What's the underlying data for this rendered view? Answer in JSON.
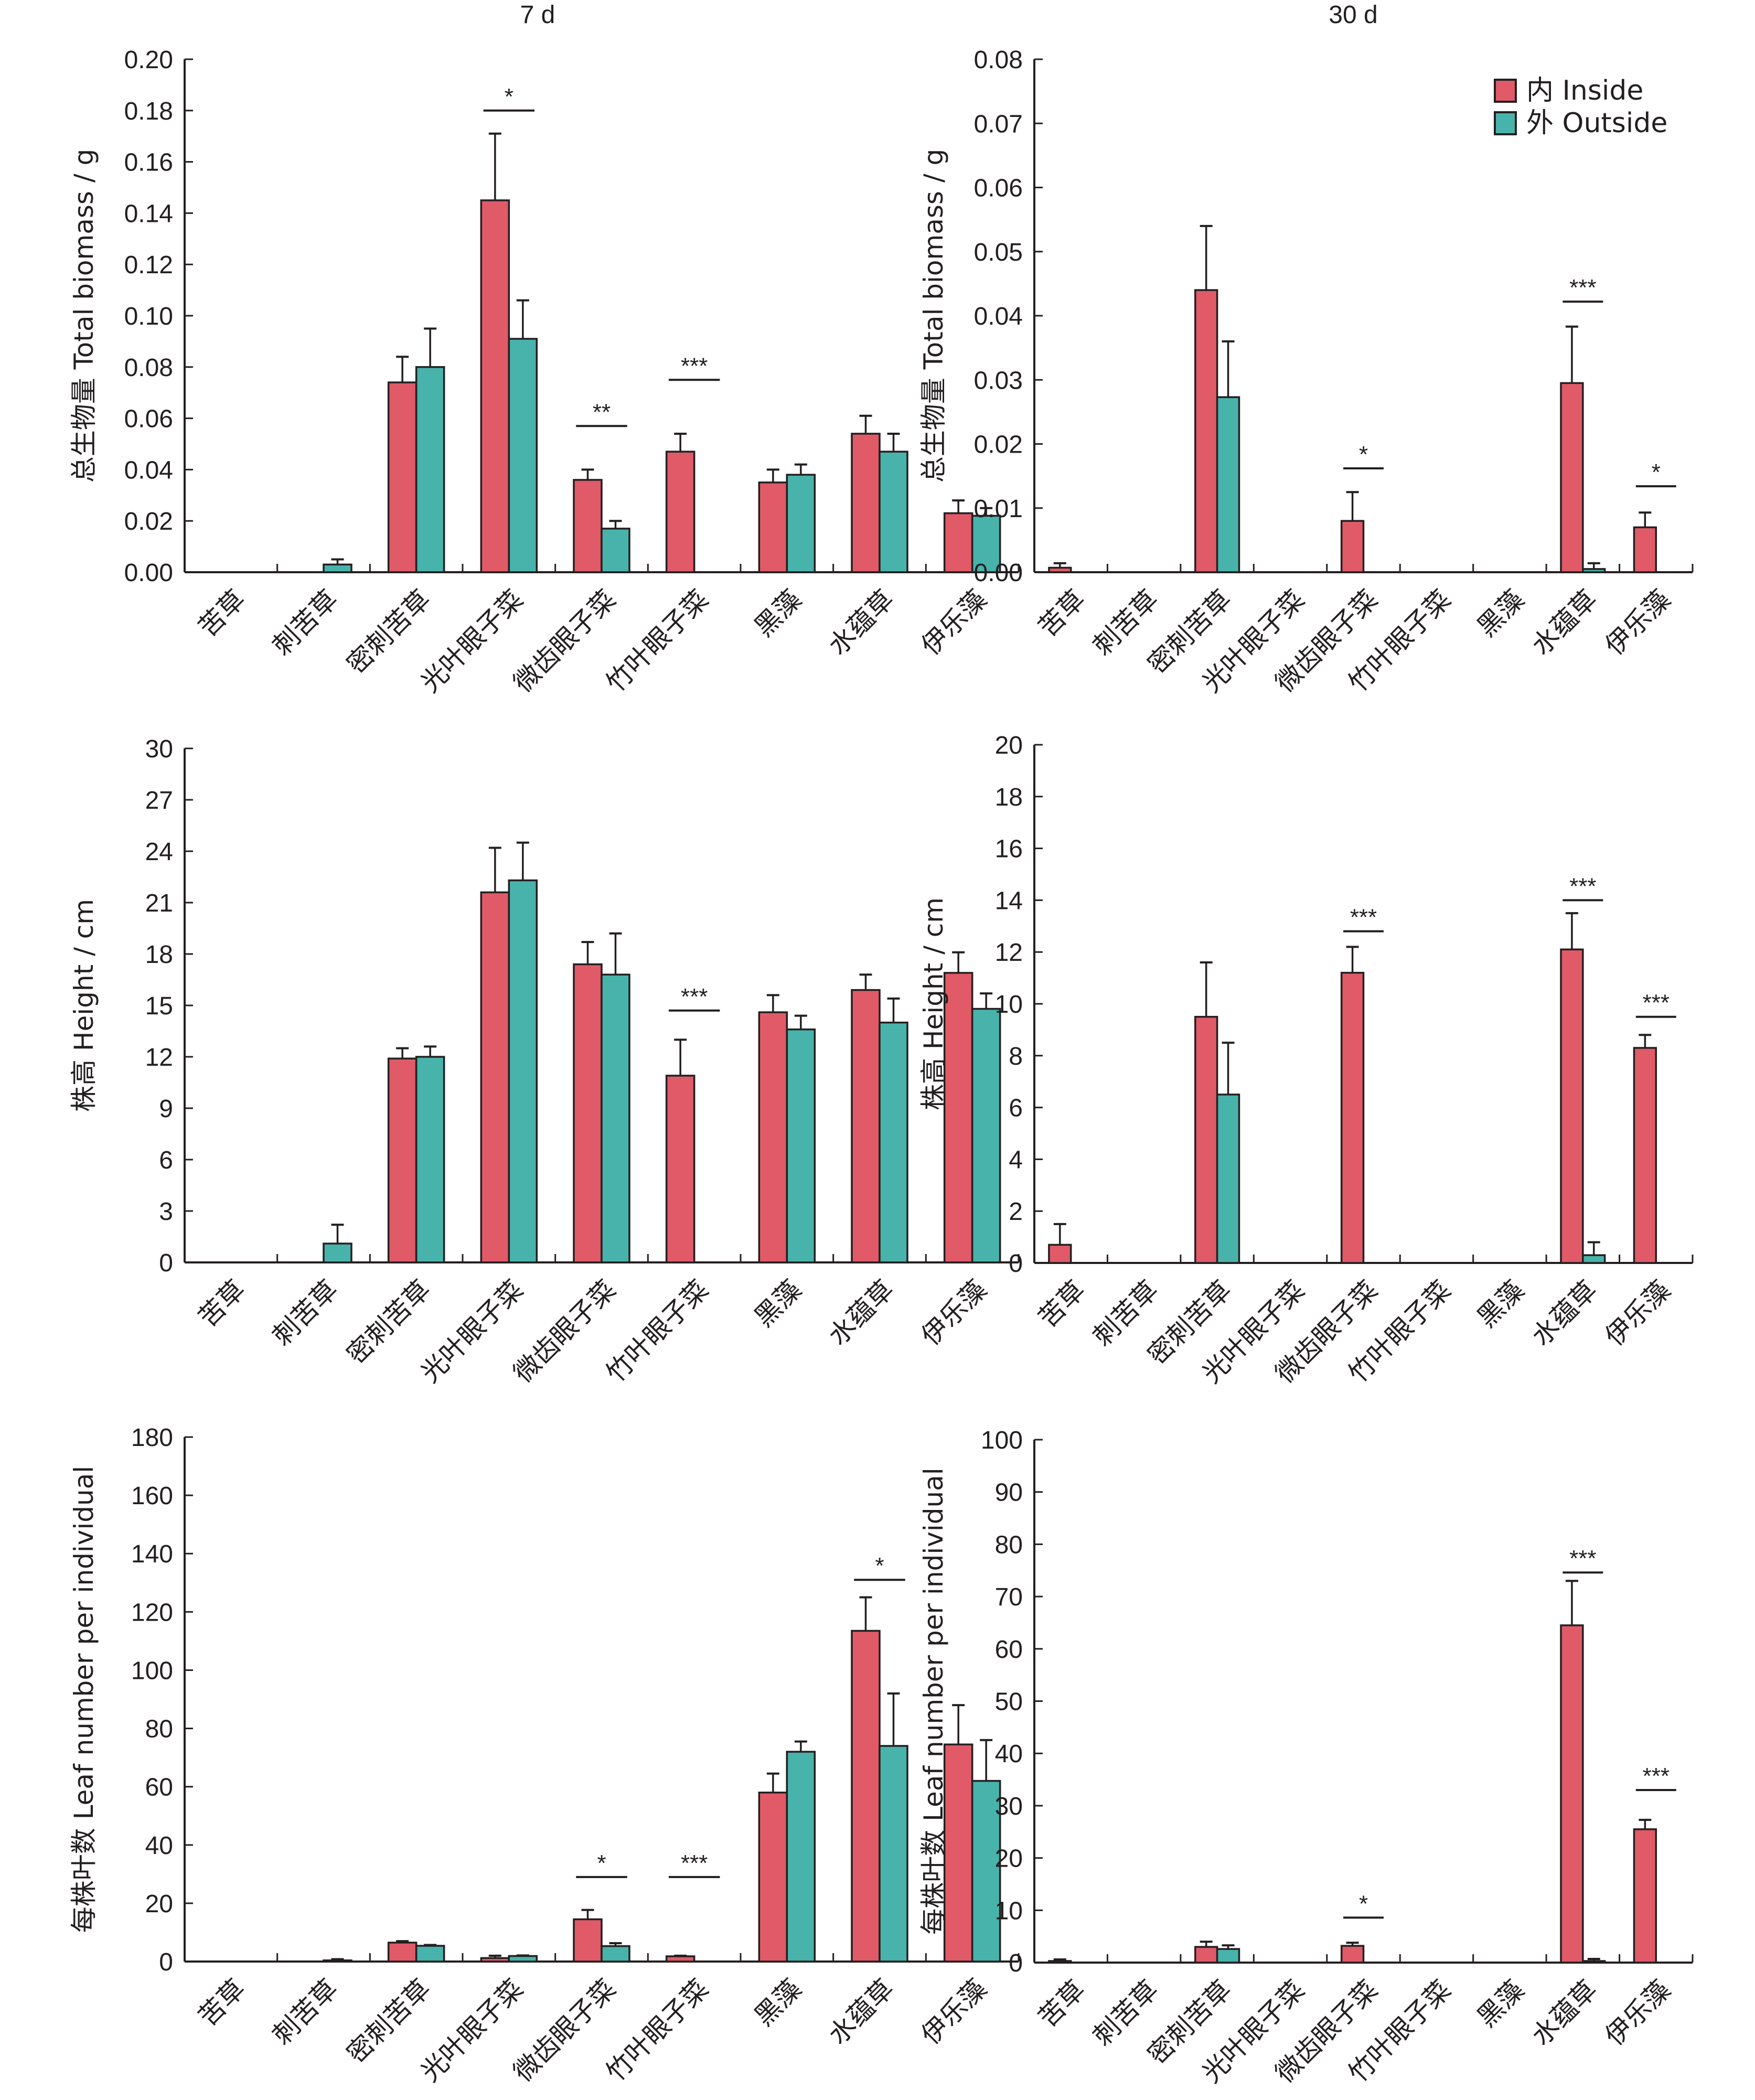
{
  "legend": {
    "placement": "top-right",
    "items": [
      {
        "key": "inside",
        "label": "内 Inside",
        "color": "#e05a68"
      },
      {
        "key": "outside",
        "label": "外 Outside",
        "color": "#48b3ab"
      }
    ]
  },
  "column_titles": [
    "7 d",
    "30 d"
  ],
  "chart_data": [
    {
      "id": "biomass-7d",
      "type": "bar",
      "title": "7 d",
      "xlabel": "",
      "ylabel": "总生物量 Total biomass / g",
      "ylim": [
        0,
        0.2
      ],
      "yticks": [
        0.0,
        0.02,
        0.04,
        0.06,
        0.08,
        0.1,
        0.12,
        0.14,
        0.16,
        0.18,
        0.2
      ],
      "ytick_labels": [
        "0.00",
        "0.02",
        "0.04",
        "0.06",
        "0.08",
        "0.10",
        "0.12",
        "0.14",
        "0.16",
        "0.18",
        "0.20"
      ],
      "categories": [
        "苦草",
        "刺苦草",
        "密刺苦草",
        "光叶眼子菜",
        "微齿眼子菜",
        "竹叶眼子菜",
        "黑藻",
        "水蕴草",
        "伊乐藻"
      ],
      "series": [
        {
          "name": "内 Inside",
          "values": [
            0,
            0,
            0.074,
            0.145,
            0.036,
            0.047,
            0.035,
            0.054,
            0.023
          ],
          "errors": [
            0,
            0,
            0.01,
            0.026,
            0.004,
            0.007,
            0.005,
            0.007,
            0.005
          ]
        },
        {
          "name": "外 Outside",
          "values": [
            0,
            0.003,
            0.08,
            0.091,
            0.017,
            0,
            0.038,
            0.047,
            0.022
          ],
          "errors": [
            0,
            0.002,
            0.015,
            0.015,
            0.003,
            0,
            0.004,
            0.007,
            0.003
          ]
        }
      ],
      "significance": [
        {
          "category": "光叶眼子菜",
          "label": "*",
          "y": 0.18
        },
        {
          "category": "微齿眼子菜",
          "label": "**",
          "y": 0.057
        },
        {
          "category": "竹叶眼子菜",
          "label": "***",
          "y": 0.075
        }
      ]
    },
    {
      "id": "biomass-30d",
      "type": "bar",
      "title": "30 d",
      "xlabel": "",
      "ylabel": "总生物量 Total biomass / g",
      "ylim": [
        0,
        0.08
      ],
      "yticks": [
        0.0,
        0.01,
        0.02,
        0.03,
        0.04,
        0.05,
        0.06,
        0.07,
        0.08
      ],
      "ytick_labels": [
        "0.00",
        "0.01",
        "0.02",
        "0.03",
        "0.04",
        "0.05",
        "0.06",
        "0.07",
        "0.08"
      ],
      "categories": [
        "苦草",
        "刺苦草",
        "密刺苦草",
        "光叶眼子菜",
        "微齿眼子菜",
        "竹叶眼子菜",
        "黑藻",
        "水蕴草",
        "伊乐藻"
      ],
      "series": [
        {
          "name": "内 Inside",
          "values": [
            0.0007,
            0,
            0.044,
            0,
            0.008,
            0,
            0,
            0.0295,
            0.007
          ],
          "errors": [
            0.0007,
            0,
            0.01,
            0,
            0.0045,
            0,
            0,
            0.0088,
            0.0023
          ]
        },
        {
          "name": "外 Outside",
          "values": [
            0,
            0,
            0.0273,
            0,
            0,
            0,
            0,
            0.0005,
            0
          ],
          "errors": [
            0,
            0,
            0.0087,
            0,
            0,
            0,
            0,
            0.0009,
            0
          ]
        }
      ],
      "significance": [
        {
          "category": "微齿眼子菜",
          "label": "*",
          "y": 0.0162
        },
        {
          "category": "水蕴草",
          "label": "***",
          "y": 0.0422
        },
        {
          "category": "伊乐藻",
          "label": "*",
          "y": 0.0134
        }
      ]
    },
    {
      "id": "height-7d",
      "type": "bar",
      "title": "",
      "xlabel": "",
      "ylabel": "株高 Height / cm",
      "ylim": [
        0,
        30
      ],
      "yticks": [
        0,
        3,
        6,
        9,
        12,
        15,
        18,
        21,
        24,
        27,
        30
      ],
      "ytick_labels": [
        "0",
        "3",
        "6",
        "9",
        "12",
        "15",
        "18",
        "21",
        "24",
        "27",
        "30"
      ],
      "categories": [
        "苦草",
        "刺苦草",
        "密刺苦草",
        "光叶眼子菜",
        "微齿眼子菜",
        "竹叶眼子菜",
        "黑藻",
        "水蕴草",
        "伊乐藻"
      ],
      "series": [
        {
          "name": "内 Inside",
          "values": [
            0,
            0,
            11.9,
            21.6,
            17.4,
            10.9,
            14.6,
            15.9,
            16.9
          ],
          "errors": [
            0,
            0,
            0.6,
            2.6,
            1.3,
            2.1,
            1.0,
            0.9,
            1.2
          ]
        },
        {
          "name": "外 Outside",
          "values": [
            0,
            1.1,
            12.0,
            22.3,
            16.8,
            0,
            13.6,
            14.0,
            14.8
          ],
          "errors": [
            0,
            1.1,
            0.6,
            2.2,
            2.4,
            0,
            0.8,
            1.4,
            0.9
          ]
        }
      ],
      "significance": [
        {
          "category": "竹叶眼子菜",
          "label": "***",
          "y": 14.7
        }
      ]
    },
    {
      "id": "height-30d",
      "type": "bar",
      "title": "",
      "xlabel": "",
      "ylabel": "株高 Height / cm",
      "ylim": [
        0,
        20
      ],
      "yticks": [
        0,
        2,
        4,
        6,
        8,
        10,
        12,
        14,
        16,
        18,
        20
      ],
      "ytick_labels": [
        "0",
        "2",
        "4",
        "6",
        "8",
        "10",
        "12",
        "14",
        "16",
        "18",
        "20"
      ],
      "categories": [
        "苦草",
        "刺苦草",
        "密刺苦草",
        "光叶眼子菜",
        "微齿眼子菜",
        "竹叶眼子菜",
        "黑藻",
        "水蕴草",
        "伊乐藻"
      ],
      "series": [
        {
          "name": "内 Inside",
          "values": [
            0.7,
            0,
            9.5,
            0,
            11.2,
            0,
            0,
            12.1,
            8.3
          ],
          "errors": [
            0.8,
            0,
            2.1,
            0,
            1.0,
            0,
            0,
            1.4,
            0.5
          ]
        },
        {
          "name": "外 Outside",
          "values": [
            0,
            0,
            6.5,
            0,
            0,
            0,
            0,
            0.3,
            0
          ],
          "errors": [
            0,
            0,
            2.0,
            0,
            0,
            0,
            0,
            0.5,
            0
          ]
        }
      ],
      "significance": [
        {
          "category": "微齿眼子菜",
          "label": "***",
          "y": 12.8
        },
        {
          "category": "水蕴草",
          "label": "***",
          "y": 14.0
        },
        {
          "category": "伊乐藻",
          "label": "***",
          "y": 9.5
        }
      ]
    },
    {
      "id": "leaf-7d",
      "type": "bar",
      "title": "",
      "xlabel": "",
      "ylabel": "每株叶数 Leaf number per individual",
      "ylim": [
        0,
        180
      ],
      "yticks": [
        0,
        20,
        40,
        60,
        80,
        100,
        120,
        140,
        160,
        180
      ],
      "ytick_labels": [
        "0",
        "20",
        "40",
        "60",
        "80",
        "100",
        "120",
        "140",
        "160",
        "180"
      ],
      "categories": [
        "苦草",
        "刺苦草",
        "密刺苦草",
        "光叶眼子菜",
        "微齿眼子菜",
        "竹叶眼子菜",
        "黑藻",
        "水蕴草",
        "伊乐藻"
      ],
      "series": [
        {
          "name": "内 Inside",
          "values": [
            0,
            0,
            6.5,
            1.2,
            14.5,
            1.8,
            58,
            113.5,
            74.5
          ],
          "errors": [
            0,
            0,
            0.5,
            0.8,
            3.2,
            0.2,
            6.5,
            11.5,
            13.5
          ]
        },
        {
          "name": "外 Outside",
          "values": [
            0,
            0.4,
            5.4,
            1.9,
            5.3,
            0,
            72,
            74,
            62
          ],
          "errors": [
            0,
            0.4,
            0.3,
            0.2,
            1.0,
            0,
            3.5,
            18,
            14
          ]
        }
      ],
      "significance": [
        {
          "category": "微齿眼子菜",
          "label": "*",
          "y": 29
        },
        {
          "category": "竹叶眼子菜",
          "label": "***",
          "y": 29
        },
        {
          "category": "水蕴草",
          "label": "*",
          "y": 131
        }
      ]
    },
    {
      "id": "leaf-30d",
      "type": "bar",
      "title": "",
      "xlabel": "",
      "ylabel": "每株叶数 Leaf number per individual",
      "ylim": [
        0,
        100
      ],
      "yticks": [
        0,
        10,
        20,
        30,
        40,
        50,
        60,
        70,
        80,
        90,
        100
      ],
      "ytick_labels": [
        "0",
        "10",
        "20",
        "30",
        "40",
        "50",
        "60",
        "70",
        "80",
        "90",
        "100"
      ],
      "categories": [
        "苦草",
        "刺苦草",
        "密刺苦草",
        "光叶眼子菜",
        "微齿眼子菜",
        "竹叶眼子菜",
        "黑藻",
        "水蕴草",
        "伊乐藻"
      ],
      "series": [
        {
          "name": "内 Inside",
          "values": [
            0.3,
            0,
            3.0,
            0,
            3.2,
            0,
            0,
            64.5,
            25.5
          ],
          "errors": [
            0.3,
            0,
            1.0,
            0,
            0.6,
            0,
            0,
            8.5,
            1.8
          ]
        },
        {
          "name": "外 Outside",
          "values": [
            0,
            0,
            2.6,
            0,
            0,
            0,
            0,
            0.3,
            0
          ],
          "errors": [
            0,
            0,
            0.7,
            0,
            0,
            0,
            0,
            0.4,
            0
          ]
        }
      ],
      "significance": [
        {
          "category": "微齿眼子菜",
          "label": "*",
          "y": 8.6
        },
        {
          "category": "水蕴草",
          "label": "***",
          "y": 74.6
        },
        {
          "category": "伊乐藻",
          "label": "***",
          "y": 33
        }
      ]
    }
  ]
}
